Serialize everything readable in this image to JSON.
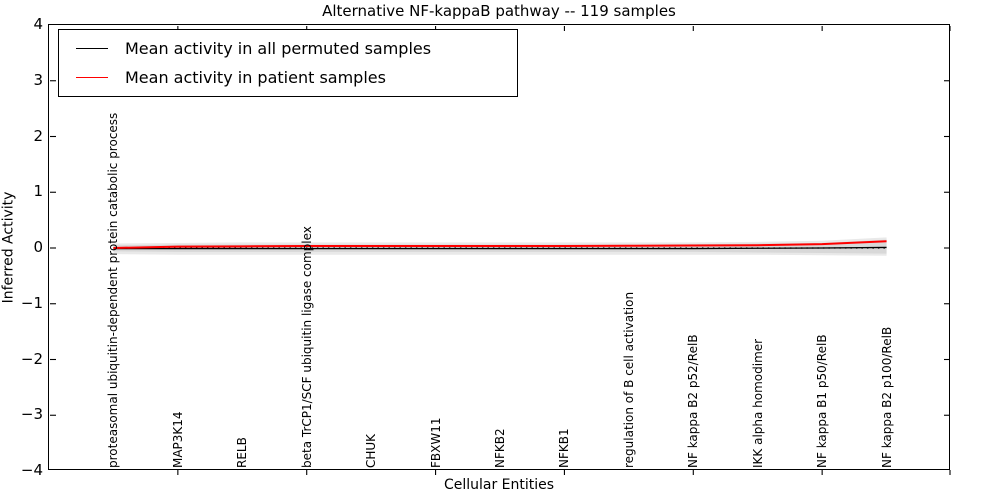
{
  "figure": {
    "title": "Alternative NF-kappaB pathway -- 119 samples",
    "xlabel": "Cellular Entities",
    "ylabel": "Inferred Activity"
  },
  "legend": {
    "items": [
      {
        "label": "Mean activity in all permuted samples",
        "color": "#000000"
      },
      {
        "label": "Mean activity in patient samples",
        "color": "#ff0000"
      }
    ]
  },
  "axes": {
    "y_ticks": [
      {
        "label": "4",
        "value": 4
      },
      {
        "label": "3",
        "value": 3
      },
      {
        "label": "2",
        "value": 2
      },
      {
        "label": "1",
        "value": 1
      },
      {
        "label": "0",
        "value": 0
      },
      {
        "label": "−1",
        "value": -1
      },
      {
        "label": "−2",
        "value": -2
      },
      {
        "label": "−3",
        "value": -3
      },
      {
        "label": "−4",
        "value": -4
      }
    ],
    "x_major_tick_indices": [
      1,
      3,
      5,
      7,
      9,
      11,
      13
    ]
  },
  "chart_data": {
    "type": "line",
    "title": "Alternative NF-kappaB pathway -- 119 samples",
    "xlabel": "Cellular Entities",
    "ylabel": "Inferred Activity",
    "ylim": [
      -4,
      4
    ],
    "grid": false,
    "legend_position": "upper left",
    "categories": [
      "proteasomal ubiquitin-dependent protein catabolic process",
      "MAP3K14",
      "RELB",
      "beta TrCP1/SCF ubiquitin ligase complex",
      "CHUK",
      "FBXW11",
      "NFKB2",
      "NFKB1",
      "regulation of B cell activation",
      "NF kappa B2 p52/RelB",
      "IKK alpha homodimer",
      "NF kappa B1 p50/RelB",
      "NF kappa B2 p100/RelB"
    ],
    "series": [
      {
        "name": "Mean activity in all permuted samples",
        "color": "#000000",
        "style": "solid",
        "values": [
          -0.01,
          -0.01,
          -0.01,
          -0.01,
          -0.01,
          -0.01,
          -0.01,
          -0.01,
          -0.01,
          -0.01,
          -0.005,
          0.0,
          0.01
        ]
      },
      {
        "name": "Mean activity in patient samples",
        "color": "#ff0000",
        "style": "solid",
        "values": [
          0.0,
          0.025,
          0.03,
          0.035,
          0.035,
          0.035,
          0.035,
          0.035,
          0.04,
          0.045,
          0.05,
          0.07,
          0.12
        ]
      }
    ],
    "reference_line": {
      "y": 0,
      "style": "dotted",
      "color": "#000000"
    },
    "uncertainty_bands": [
      {
        "name": "outer",
        "color": "#e9e9e9",
        "top": [
          0.08,
          0.09,
          0.1,
          0.1,
          0.1,
          0.1,
          0.1,
          0.1,
          0.1,
          0.1,
          0.11,
          0.13,
          0.19
        ],
        "bottom": [
          -0.11,
          -0.12,
          -0.12,
          -0.12,
          -0.12,
          -0.12,
          -0.12,
          -0.12,
          -0.12,
          -0.12,
          -0.12,
          -0.13,
          -0.14
        ]
      },
      {
        "name": "inner",
        "color": "#d8d8d8",
        "top": [
          0.05,
          0.06,
          0.06,
          0.06,
          0.06,
          0.06,
          0.06,
          0.06,
          0.06,
          0.07,
          0.08,
          0.09,
          0.15
        ],
        "bottom": [
          -0.06,
          -0.07,
          -0.07,
          -0.07,
          -0.07,
          -0.07,
          -0.07,
          -0.07,
          -0.07,
          -0.07,
          -0.08,
          -0.09,
          -0.1
        ]
      }
    ]
  }
}
